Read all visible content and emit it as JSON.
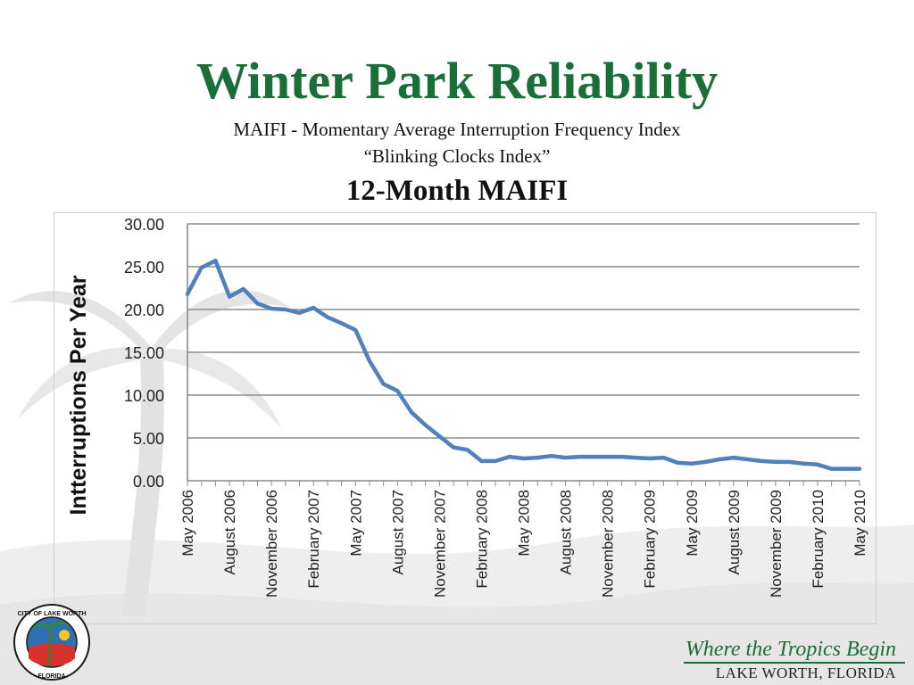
{
  "slide": {
    "title": "Winter Park Reliability",
    "subtitle1": "MAIFI - Momentary Average Interruption Frequency Index",
    "subtitle2": "“Blinking Clocks Index”",
    "heading": "12-Month MAIFI"
  },
  "footer": {
    "tagline": "Where the Tropics Begin",
    "location": "LAKE WORTH, FLORIDA",
    "logo_top": "CITY OF LAKE WORTH",
    "logo_bottom": "FLORIDA"
  },
  "colors": {
    "title": "#1a6e37",
    "line": "#4f81bd",
    "grid": "#8c8c8c"
  },
  "chart_data": {
    "type": "line",
    "title": "",
    "xlabel": "",
    "ylabel": "Intterruptions Per Year",
    "ylim": [
      0,
      30
    ],
    "yticks": [
      "0.00",
      "5.00",
      "10.00",
      "15.00",
      "20.00",
      "25.00",
      "30.00"
    ],
    "xtick_labels": [
      "May 2006",
      "August 2006",
      "November 2006",
      "February 2007",
      "May 2007",
      "August 2007",
      "November 2007",
      "February 2008",
      "May 2008",
      "August 2008",
      "November 2008",
      "February 2009",
      "May 2009",
      "August 2009",
      "November 2009",
      "February 2010",
      "May 2010"
    ],
    "grid": true,
    "legend": "none",
    "x": [
      "2006-05",
      "2006-06",
      "2006-07",
      "2006-08",
      "2006-09",
      "2006-10",
      "2006-11",
      "2006-12",
      "2007-01",
      "2007-02",
      "2007-03",
      "2007-04",
      "2007-05",
      "2007-06",
      "2007-07",
      "2007-08",
      "2007-09",
      "2007-10",
      "2007-11",
      "2007-12",
      "2008-01",
      "2008-02",
      "2008-03",
      "2008-04",
      "2008-05",
      "2008-06",
      "2008-07",
      "2008-08",
      "2008-09",
      "2008-10",
      "2008-11",
      "2008-12",
      "2009-01",
      "2009-02",
      "2009-03",
      "2009-04",
      "2009-05",
      "2009-06",
      "2009-07",
      "2009-08",
      "2009-09",
      "2009-10",
      "2009-11",
      "2009-12",
      "2010-01",
      "2010-02",
      "2010-03",
      "2010-04",
      "2010-05"
    ],
    "series": [
      {
        "values": [
          21.8,
          24.9,
          25.7,
          21.5,
          22.4,
          20.7,
          20.1,
          20.0,
          19.6,
          20.2,
          19.1,
          18.4,
          17.6,
          14.0,
          11.3,
          10.5,
          8.0,
          6.5,
          5.2,
          3.9,
          3.6,
          2.3,
          2.3,
          2.8,
          2.6,
          2.7,
          2.9,
          2.7,
          2.8,
          2.8,
          2.8,
          2.8,
          2.7,
          2.6,
          2.7,
          2.1,
          2.0,
          2.2,
          2.5,
          2.7,
          2.5,
          2.3,
          2.2,
          2.2,
          2.0,
          1.9,
          1.4,
          1.4,
          1.4
        ]
      }
    ]
  }
}
